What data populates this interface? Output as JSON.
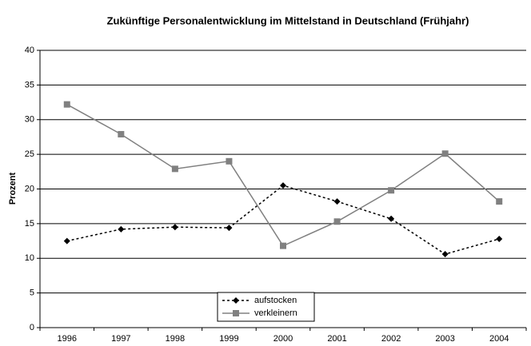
{
  "chart_data": {
    "type": "line",
    "title": "Zukünftige Personalentwicklung im Mittelstand in Deutschland (Frühjahr)",
    "y_label": "Prozent",
    "categories": [
      "1996",
      "1997",
      "1998",
      "1999",
      "2000",
      "2001",
      "2002",
      "2003",
      "2004"
    ],
    "series": [
      {
        "name": "aufstocken",
        "color": "#000000",
        "dash": true,
        "marker": "diamond",
        "values": [
          12.5,
          14.2,
          14.5,
          14.4,
          20.5,
          18.2,
          15.7,
          10.6,
          12.8
        ]
      },
      {
        "name": "verkleinern",
        "color": "#808080",
        "dash": false,
        "marker": "square",
        "values": [
          32.2,
          27.9,
          22.9,
          24.0,
          11.8,
          15.3,
          19.8,
          25.1,
          18.2
        ]
      }
    ],
    "ylim": [
      0,
      40
    ],
    "yticks": [
      0,
      5,
      10,
      15,
      20,
      25,
      30,
      35,
      40
    ],
    "grid": true,
    "legend_position": "lower center"
  }
}
